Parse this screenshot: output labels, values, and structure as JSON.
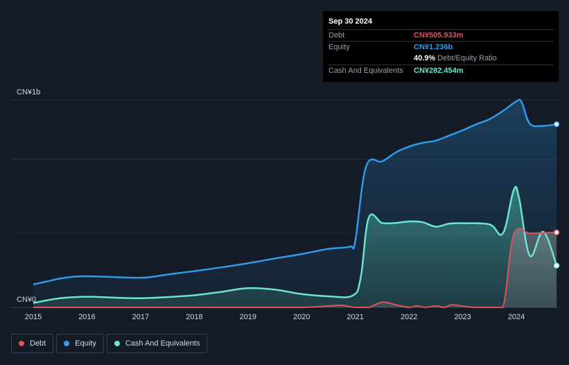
{
  "tooltip": {
    "date": "Sep 30 2024",
    "rows": [
      {
        "label": "Debt",
        "value": "CN¥505.933m",
        "color": "#e0525b"
      },
      {
        "label": "Equity",
        "value": "CN¥1.236b",
        "color": "#2f9bea"
      },
      {
        "label": "Cash And Equivalents",
        "value": "CN¥282.454m",
        "color": "#6fe3d1"
      }
    ],
    "ratio_value": "40.9%",
    "ratio_label": "Debt/Equity Ratio"
  },
  "legend": [
    {
      "label": "Debt",
      "color": "#e0525b"
    },
    {
      "label": "Equity",
      "color": "#2f9bea"
    },
    {
      "label": "Cash And Equivalents",
      "color": "#6fe3d1"
    }
  ],
  "chart_data": {
    "type": "area",
    "x_unit": "year",
    "y_unit": "CN¥ millions",
    "ylim": [
      0,
      1400
    ],
    "y_tick_labels": [
      {
        "value": 1400,
        "label": "CN¥1b"
      },
      {
        "value": 0,
        "label": "CN¥0"
      }
    ],
    "x_ticks": [
      2015,
      2016,
      2017,
      2018,
      2019,
      2020,
      2021,
      2022,
      2023,
      2024
    ],
    "grid": true,
    "legend_position": "bottom-left",
    "series": [
      {
        "name": "Debt",
        "color": "#e0525b",
        "points": [
          [
            2015.0,
            0
          ],
          [
            2016.0,
            0
          ],
          [
            2017.0,
            0
          ],
          [
            2018.0,
            0
          ],
          [
            2019.0,
            0
          ],
          [
            2020.0,
            0
          ],
          [
            2020.5,
            10
          ],
          [
            2020.75,
            14
          ],
          [
            2021.0,
            0
          ],
          [
            2021.25,
            0
          ],
          [
            2021.5,
            35
          ],
          [
            2021.75,
            18
          ],
          [
            2022.0,
            0
          ],
          [
            2022.15,
            10
          ],
          [
            2022.3,
            0
          ],
          [
            2022.5,
            10
          ],
          [
            2022.65,
            0
          ],
          [
            2022.8,
            18
          ],
          [
            2023.0,
            8
          ],
          [
            2023.25,
            0
          ],
          [
            2023.5,
            0
          ],
          [
            2023.75,
            0
          ],
          [
            2023.95,
            490
          ],
          [
            2024.25,
            500
          ],
          [
            2024.5,
            503
          ],
          [
            2024.75,
            506
          ]
        ]
      },
      {
        "name": "Equity",
        "color": "#2f9bea",
        "points": [
          [
            2015.0,
            155
          ],
          [
            2015.25,
            175
          ],
          [
            2015.5,
            195
          ],
          [
            2015.75,
            207
          ],
          [
            2016.0,
            210
          ],
          [
            2016.5,
            205
          ],
          [
            2017.0,
            200
          ],
          [
            2017.25,
            208
          ],
          [
            2017.5,
            222
          ],
          [
            2018.0,
            245
          ],
          [
            2018.5,
            270
          ],
          [
            2019.0,
            298
          ],
          [
            2019.5,
            330
          ],
          [
            2020.0,
            360
          ],
          [
            2020.5,
            395
          ],
          [
            2020.9,
            410
          ],
          [
            2021.0,
            450
          ],
          [
            2021.2,
            950
          ],
          [
            2021.5,
            985
          ],
          [
            2021.75,
            1045
          ],
          [
            2022.0,
            1085
          ],
          [
            2022.25,
            1110
          ],
          [
            2022.5,
            1125
          ],
          [
            2022.75,
            1160
          ],
          [
            2023.0,
            1195
          ],
          [
            2023.25,
            1235
          ],
          [
            2023.5,
            1270
          ],
          [
            2023.75,
            1325
          ],
          [
            2024.0,
            1390
          ],
          [
            2024.1,
            1385
          ],
          [
            2024.25,
            1240
          ],
          [
            2024.5,
            1225
          ],
          [
            2024.75,
            1236
          ]
        ]
      },
      {
        "name": "Cash And Equivalents",
        "color": "#6fe3d1",
        "points": [
          [
            2015.0,
            30
          ],
          [
            2015.5,
            62
          ],
          [
            2016.0,
            72
          ],
          [
            2016.5,
            66
          ],
          [
            2017.0,
            62
          ],
          [
            2017.5,
            70
          ],
          [
            2018.0,
            82
          ],
          [
            2018.5,
            105
          ],
          [
            2019.0,
            130
          ],
          [
            2019.5,
            120
          ],
          [
            2020.0,
            90
          ],
          [
            2020.5,
            75
          ],
          [
            2020.95,
            80
          ],
          [
            2021.1,
            200
          ],
          [
            2021.25,
            605
          ],
          [
            2021.5,
            570
          ],
          [
            2021.75,
            570
          ],
          [
            2022.0,
            580
          ],
          [
            2022.25,
            575
          ],
          [
            2022.5,
            545
          ],
          [
            2022.75,
            565
          ],
          [
            2023.0,
            568
          ],
          [
            2023.5,
            560
          ],
          [
            2023.75,
            500
          ],
          [
            2023.95,
            790
          ],
          [
            2024.05,
            740
          ],
          [
            2024.25,
            350
          ],
          [
            2024.5,
            510
          ],
          [
            2024.75,
            282
          ]
        ]
      }
    ]
  }
}
